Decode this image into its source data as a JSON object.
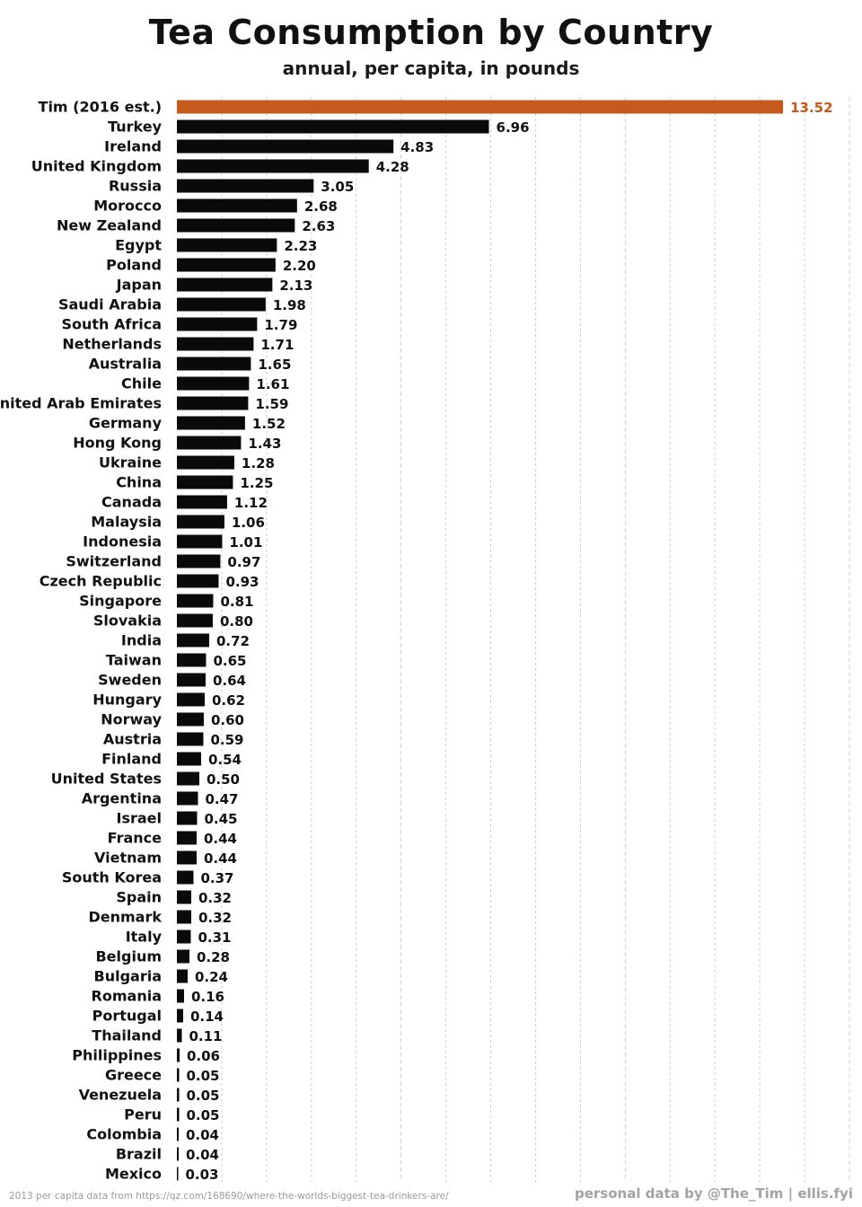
{
  "header": {
    "title": "Tea Consumption by Country",
    "subtitle": "annual, per capita, in pounds"
  },
  "footer": {
    "source": "2013 per capita data from https://qz.com/168690/where-the-worlds-biggest-tea-drinkers-are/",
    "credit": "personal data by @The_Tim | ellis.fyi"
  },
  "colors": {
    "bar": "#0a0a0a",
    "highlight_bar": "#c45a1c",
    "grid": "#cfcfcf"
  },
  "chart_data": {
    "type": "bar",
    "orientation": "horizontal",
    "title": "Tea Consumption by Country",
    "subtitle": "annual, per capita, in pounds",
    "xlabel": "",
    "ylabel": "",
    "xlim": [
      0,
      15
    ],
    "grid": true,
    "highlight": "Tim (2016 est.)",
    "categories": [
      "Tim (2016 est.)",
      "Turkey",
      "Ireland",
      "United Kingdom",
      "Russia",
      "Morocco",
      "New Zealand",
      "Egypt",
      "Poland",
      "Japan",
      "Saudi Arabia",
      "South Africa",
      "Netherlands",
      "Australia",
      "Chile",
      "United Arab Emirates",
      "Germany",
      "Hong Kong",
      "Ukraine",
      "China",
      "Canada",
      "Malaysia",
      "Indonesia",
      "Switzerland",
      "Czech Republic",
      "Singapore",
      "Slovakia",
      "India",
      "Taiwan",
      "Sweden",
      "Hungary",
      "Norway",
      "Austria",
      "Finland",
      "United States",
      "Argentina",
      "Israel",
      "France",
      "Vietnam",
      "South Korea",
      "Spain",
      "Denmark",
      "Italy",
      "Belgium",
      "Bulgaria",
      "Romania",
      "Portugal",
      "Thailand",
      "Philippines",
      "Greece",
      "Venezuela",
      "Peru",
      "Colombia",
      "Brazil",
      "Mexico"
    ],
    "values": [
      13.52,
      6.96,
      4.83,
      4.28,
      3.05,
      2.68,
      2.63,
      2.23,
      2.2,
      2.13,
      1.98,
      1.79,
      1.71,
      1.65,
      1.61,
      1.59,
      1.52,
      1.43,
      1.28,
      1.25,
      1.12,
      1.06,
      1.01,
      0.97,
      0.93,
      0.81,
      0.8,
      0.72,
      0.65,
      0.64,
      0.62,
      0.6,
      0.59,
      0.54,
      0.5,
      0.47,
      0.45,
      0.44,
      0.44,
      0.37,
      0.32,
      0.32,
      0.31,
      0.28,
      0.24,
      0.16,
      0.14,
      0.11,
      0.06,
      0.05,
      0.05,
      0.05,
      0.04,
      0.04,
      0.03
    ],
    "value_labels": [
      "13.52",
      "6.96",
      "4.83",
      "4.28",
      "3.05",
      "2.68",
      "2.63",
      "2.23",
      "2.20",
      "2.13",
      "1.98",
      "1.79",
      "1.71",
      "1.65",
      "1.61",
      "1.59",
      "1.52",
      "1.43",
      "1.28",
      "1.25",
      "1.12",
      "1.06",
      "1.01",
      "0.97",
      "0.93",
      "0.81",
      "0.80",
      "0.72",
      "0.65",
      "0.64",
      "0.62",
      "0.60",
      "0.59",
      "0.54",
      "0.50",
      "0.47",
      "0.45",
      "0.44",
      "0.44",
      "0.37",
      "0.32",
      "0.32",
      "0.31",
      "0.28",
      "0.24",
      "0.16",
      "0.14",
      "0.11",
      "0.06",
      "0.05",
      "0.05",
      "0.05",
      "0.04",
      "0.04",
      "0.03"
    ]
  }
}
